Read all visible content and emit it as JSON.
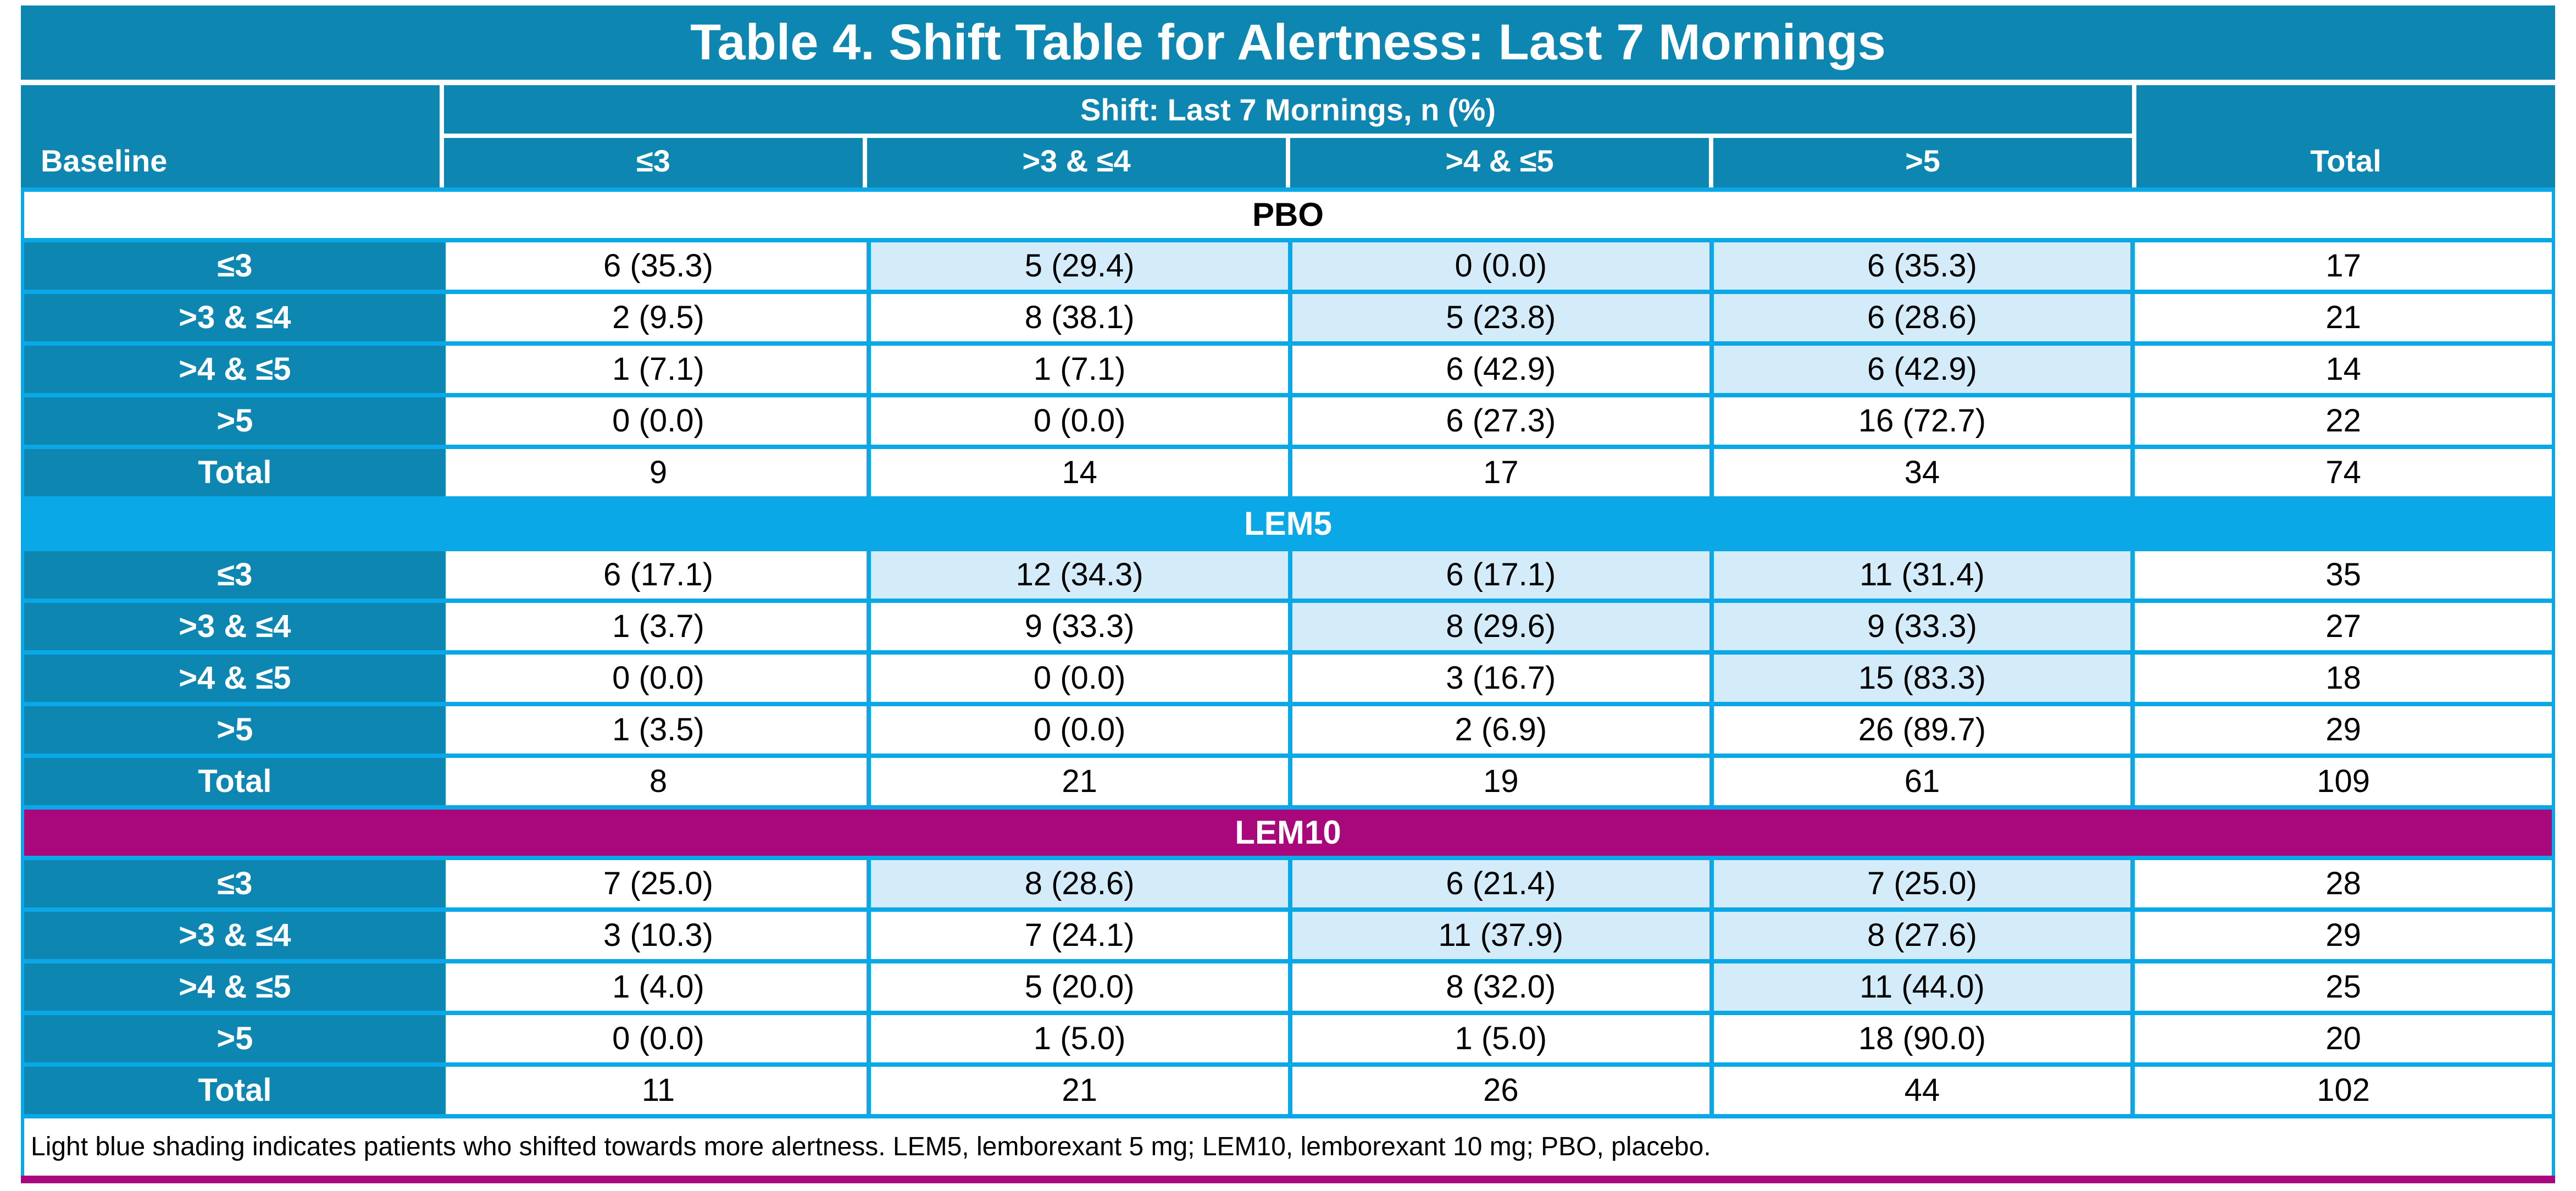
{
  "title": "Table 4. Shift Table for Alertness: Last 7 Mornings",
  "header": {
    "baseline": "Baseline",
    "group": "Shift: Last 7 Mornings, n (%)",
    "cols": [
      "≤3",
      ">3 & ≤4",
      ">4 & ≤5",
      ">5"
    ],
    "total": "Total"
  },
  "sections": [
    {
      "name": "PBO",
      "rows": [
        {
          "label": "≤3",
          "cells": [
            "6 (35.3)",
            "5 (29.4)",
            "0 (0.0)",
            "6 (35.3)"
          ],
          "total": "17",
          "shaded": [
            false,
            true,
            true,
            true
          ]
        },
        {
          "label": ">3 & ≤4",
          "cells": [
            "2 (9.5)",
            "8 (38.1)",
            "5 (23.8)",
            "6 (28.6)"
          ],
          "total": "21",
          "shaded": [
            false,
            false,
            true,
            true
          ]
        },
        {
          "label": ">4 & ≤5",
          "cells": [
            "1 (7.1)",
            "1 (7.1)",
            "6 (42.9)",
            "6 (42.9)"
          ],
          "total": "14",
          "shaded": [
            false,
            false,
            false,
            true
          ]
        },
        {
          "label": ">5",
          "cells": [
            "0 (0.0)",
            "0 (0.0)",
            "6 (27.3)",
            "16 (72.7)"
          ],
          "total": "22",
          "shaded": [
            false,
            false,
            false,
            false
          ]
        },
        {
          "label": "Total",
          "cells": [
            "9",
            "14",
            "17",
            "34"
          ],
          "total": "74",
          "shaded": [
            false,
            false,
            false,
            false
          ]
        }
      ]
    },
    {
      "name": "LEM5",
      "rows": [
        {
          "label": "≤3",
          "cells": [
            "6 (17.1)",
            "12 (34.3)",
            "6 (17.1)",
            "11 (31.4)"
          ],
          "total": "35",
          "shaded": [
            false,
            true,
            true,
            true
          ]
        },
        {
          "label": ">3 & ≤4",
          "cells": [
            "1 (3.7)",
            "9 (33.3)",
            "8 (29.6)",
            "9 (33.3)"
          ],
          "total": "27",
          "shaded": [
            false,
            false,
            true,
            true
          ]
        },
        {
          "label": ">4 & ≤5",
          "cells": [
            "0 (0.0)",
            "0 (0.0)",
            "3 (16.7)",
            "15 (83.3)"
          ],
          "total": "18",
          "shaded": [
            false,
            false,
            false,
            true
          ]
        },
        {
          "label": ">5",
          "cells": [
            "1 (3.5)",
            "0 (0.0)",
            "2 (6.9)",
            "26 (89.7)"
          ],
          "total": "29",
          "shaded": [
            false,
            false,
            false,
            false
          ]
        },
        {
          "label": "Total",
          "cells": [
            "8",
            "21",
            "19",
            "61"
          ],
          "total": "109",
          "shaded": [
            false,
            false,
            false,
            false
          ]
        }
      ]
    },
    {
      "name": "LEM10",
      "rows": [
        {
          "label": "≤3",
          "cells": [
            "7 (25.0)",
            "8 (28.6)",
            "6 (21.4)",
            "7 (25.0)"
          ],
          "total": "28",
          "shaded": [
            false,
            true,
            true,
            true
          ]
        },
        {
          "label": ">3 & ≤4",
          "cells": [
            "3 (10.3)",
            "7 (24.1)",
            "11 (37.9)",
            "8 (27.6)"
          ],
          "total": "29",
          "shaded": [
            false,
            false,
            true,
            true
          ]
        },
        {
          "label": ">4 & ≤5",
          "cells": [
            "1 (4.0)",
            "5 (20.0)",
            "8 (32.0)",
            "11 (44.0)"
          ],
          "total": "25",
          "shaded": [
            false,
            false,
            false,
            true
          ]
        },
        {
          "label": ">5",
          "cells": [
            "0 (0.0)",
            "1 (5.0)",
            "1 (5.0)",
            "18 (90.0)"
          ],
          "total": "20",
          "shaded": [
            false,
            false,
            false,
            false
          ]
        },
        {
          "label": "Total",
          "cells": [
            "11",
            "21",
            "26",
            "44"
          ],
          "total": "102",
          "shaded": [
            false,
            false,
            false,
            false
          ]
        }
      ]
    }
  ],
  "footnote": "Light blue shading indicates patients who shifted towards more alertness. LEM5, lemborexant 5 mg; LEM10, lemborexant 10 mg; PBO, placebo.",
  "colors": {
    "header_teal": "#0E86B2",
    "grid_blue": "#0AA8E6",
    "lem5_band_blue": "#0AA8E6",
    "lem10_band_magenta": "#A9087C",
    "shift_shading_light_blue": "#D4ECF9",
    "pbo_band_white": "#FFFFFF"
  }
}
